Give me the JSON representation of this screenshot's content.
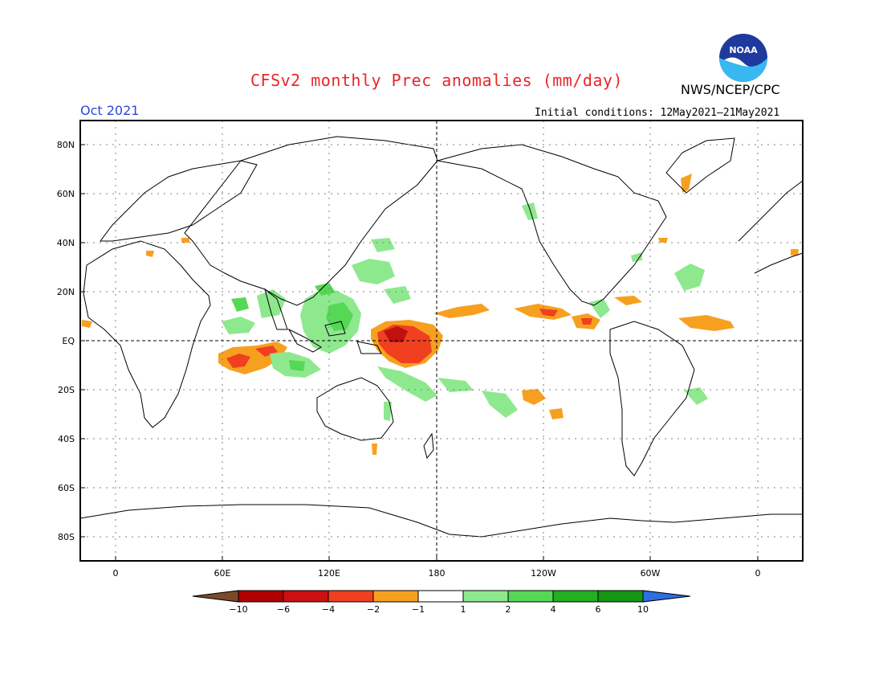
{
  "title": "CFSv2 monthly Prec anomalies (mm/day)",
  "agency": "NWS/NCEP/CPC",
  "logo_text": "NOAA",
  "valid_month": "Oct 2021",
  "initial_conditions": "Initial conditions: 12May2021–21May2021",
  "lat_labels": [
    "80N",
    "60N",
    "40N",
    "20N",
    "EQ",
    "20S",
    "40S",
    "60S",
    "80S"
  ],
  "lon_labels": [
    "0",
    "60E",
    "120E",
    "180",
    "120W",
    "60W",
    "0"
  ],
  "colorbar": {
    "labels": [
      "−10",
      "−6",
      "−4",
      "−2",
      "−1",
      "1",
      "2",
      "4",
      "6",
      "10"
    ],
    "colors": [
      "#7a4a2a",
      "#b00000",
      "#cc1010",
      "#f04020",
      "#f7a020",
      "#ffffff",
      "#8ee88e",
      "#55d855",
      "#22b022",
      "#149614",
      "#2f6ee0"
    ]
  },
  "colors": {
    "title": "#e8262a",
    "valid": "#2649d6",
    "dry_light": "#f7a020",
    "dry_mid": "#f04020",
    "dry_strong": "#c01010",
    "wet_light": "#8ee88e",
    "wet_mid": "#55d855"
  }
}
